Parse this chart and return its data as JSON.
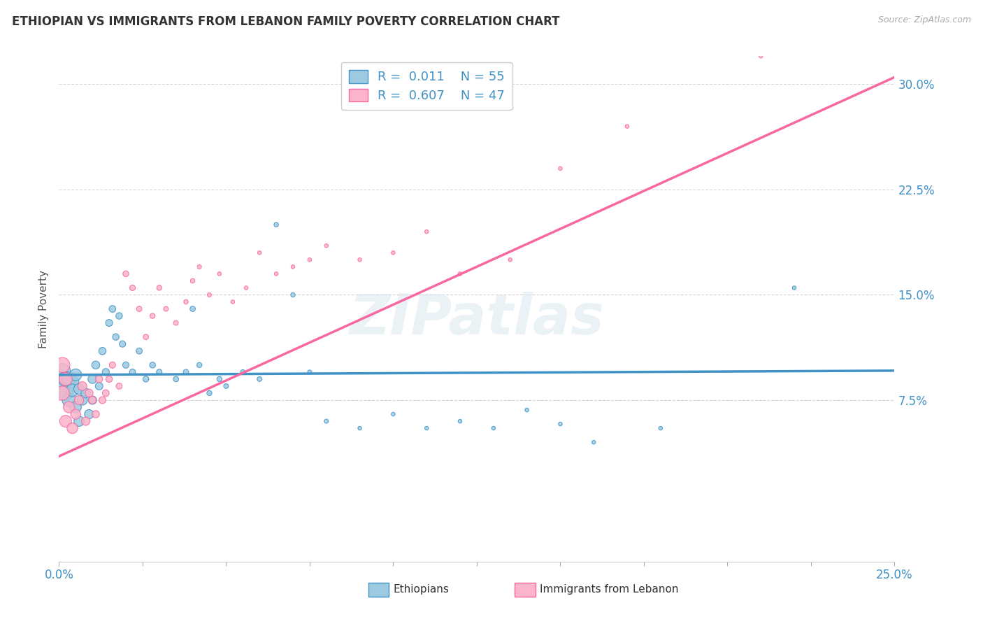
{
  "title": "ETHIOPIAN VS IMMIGRANTS FROM LEBANON FAMILY POVERTY CORRELATION CHART",
  "source": "Source: ZipAtlas.com",
  "ylabel": "Family Poverty",
  "x_min": 0.0,
  "x_max": 0.25,
  "y_min": -0.04,
  "y_max": 0.32,
  "x_ticks": [
    0.0,
    0.025,
    0.05,
    0.075,
    0.1,
    0.125,
    0.15,
    0.175,
    0.2,
    0.225,
    0.25
  ],
  "y_ticks": [
    0.075,
    0.15,
    0.225,
    0.3
  ],
  "y_tick_labels": [
    "7.5%",
    "15.0%",
    "22.5%",
    "30.0%"
  ],
  "series1_color": "#4292c6",
  "series1_fill": "#9ecae1",
  "series2_color": "#f768a1",
  "series2_fill": "#fbb4c9",
  "series1_label": "Ethiopians",
  "series2_label": "Immigrants from Lebanon",
  "series1_R": "0.011",
  "series1_N": "55",
  "series2_R": "0.607",
  "series2_N": "47",
  "text_color": "#4292c6",
  "watermark": "ZIPatlas",
  "background_color": "#ffffff",
  "grid_color": "#cccccc",
  "title_color": "#333333",
  "trend1_x0": 0.0,
  "trend1_x1": 0.25,
  "trend1_y0": 0.093,
  "trend1_y1": 0.096,
  "trend2_x0": 0.0,
  "trend2_x1": 0.25,
  "trend2_y0": 0.035,
  "trend2_y1": 0.305,
  "ethiopians_x": [
    0.001,
    0.001,
    0.002,
    0.002,
    0.003,
    0.003,
    0.004,
    0.004,
    0.005,
    0.005,
    0.006,
    0.006,
    0.007,
    0.008,
    0.009,
    0.01,
    0.01,
    0.011,
    0.012,
    0.013,
    0.014,
    0.015,
    0.016,
    0.017,
    0.018,
    0.019,
    0.02,
    0.022,
    0.024,
    0.026,
    0.028,
    0.03,
    0.035,
    0.038,
    0.04,
    0.042,
    0.045,
    0.048,
    0.05,
    0.055,
    0.06,
    0.065,
    0.07,
    0.075,
    0.08,
    0.09,
    0.1,
    0.11,
    0.12,
    0.13,
    0.14,
    0.15,
    0.16,
    0.18,
    0.22
  ],
  "ethiopians_y": [
    0.095,
    0.085,
    0.09,
    0.08,
    0.09,
    0.075,
    0.088,
    0.082,
    0.093,
    0.07,
    0.083,
    0.06,
    0.075,
    0.08,
    0.065,
    0.09,
    0.075,
    0.1,
    0.085,
    0.11,
    0.095,
    0.13,
    0.14,
    0.12,
    0.135,
    0.115,
    0.1,
    0.095,
    0.11,
    0.09,
    0.1,
    0.095,
    0.09,
    0.095,
    0.14,
    0.1,
    0.08,
    0.09,
    0.085,
    0.095,
    0.09,
    0.2,
    0.15,
    0.095,
    0.06,
    0.055,
    0.065,
    0.055,
    0.06,
    0.055,
    0.068,
    0.058,
    0.045,
    0.055,
    0.155
  ],
  "ethiopians_sizes": [
    200,
    180,
    160,
    150,
    140,
    130,
    120,
    110,
    100,
    90,
    80,
    75,
    70,
    65,
    60,
    55,
    50,
    45,
    40,
    38,
    36,
    34,
    32,
    30,
    30,
    28,
    28,
    26,
    26,
    24,
    24,
    22,
    20,
    20,
    20,
    18,
    18,
    18,
    16,
    16,
    16,
    14,
    14,
    12,
    12,
    10,
    10,
    10,
    10,
    10,
    10,
    10,
    10,
    10,
    10
  ],
  "lebanon_x": [
    0.001,
    0.001,
    0.002,
    0.002,
    0.003,
    0.004,
    0.005,
    0.006,
    0.007,
    0.008,
    0.009,
    0.01,
    0.011,
    0.012,
    0.013,
    0.014,
    0.015,
    0.016,
    0.018,
    0.02,
    0.022,
    0.024,
    0.026,
    0.028,
    0.03,
    0.032,
    0.035,
    0.038,
    0.04,
    0.042,
    0.045,
    0.048,
    0.052,
    0.056,
    0.06,
    0.065,
    0.07,
    0.075,
    0.08,
    0.09,
    0.1,
    0.11,
    0.12,
    0.135,
    0.15,
    0.17,
    0.21
  ],
  "lebanon_y": [
    0.1,
    0.08,
    0.09,
    0.06,
    0.07,
    0.055,
    0.065,
    0.075,
    0.085,
    0.06,
    0.08,
    0.075,
    0.065,
    0.09,
    0.075,
    0.08,
    0.09,
    0.1,
    0.085,
    0.165,
    0.155,
    0.14,
    0.12,
    0.135,
    0.155,
    0.14,
    0.13,
    0.145,
    0.16,
    0.17,
    0.15,
    0.165,
    0.145,
    0.155,
    0.18,
    0.165,
    0.17,
    0.175,
    0.185,
    0.175,
    0.18,
    0.195,
    0.165,
    0.175,
    0.24,
    0.27,
    0.32
  ],
  "lebanon_sizes": [
    160,
    140,
    120,
    100,
    90,
    80,
    70,
    60,
    55,
    50,
    45,
    40,
    38,
    36,
    34,
    32,
    30,
    28,
    26,
    24,
    22,
    20,
    20,
    18,
    18,
    16,
    16,
    14,
    14,
    12,
    12,
    10,
    10,
    10,
    10,
    10,
    10,
    10,
    10,
    10,
    10,
    10,
    10,
    10,
    10,
    10,
    10
  ]
}
